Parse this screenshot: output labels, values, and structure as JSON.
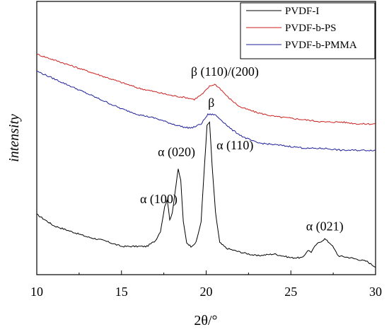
{
  "chart_data": {
    "type": "line",
    "xlabel": "2θ/°",
    "ylabel": "intensity",
    "xlim": [
      10,
      30
    ],
    "xticks": [
      "10",
      "15",
      "20",
      "25",
      "30"
    ],
    "grid": false,
    "y_tick_labels": false,
    "legend_placement": "top-right",
    "series": [
      {
        "name": "PVDF-I",
        "color": "#000000",
        "points": [
          [
            10,
            0.29
          ],
          [
            10.5,
            0.26
          ],
          [
            11,
            0.23
          ],
          [
            12,
            0.2
          ],
          [
            13,
            0.17
          ],
          [
            14,
            0.15
          ],
          [
            15,
            0.12
          ],
          [
            16,
            0.12
          ],
          [
            16.5,
            0.12
          ],
          [
            17,
            0.15
          ],
          [
            17.3,
            0.2
          ],
          [
            17.55,
            0.33
          ],
          [
            17.7,
            0.37
          ],
          [
            17.85,
            0.26
          ],
          [
            18,
            0.3
          ],
          [
            18.15,
            0.4
          ],
          [
            18.35,
            0.53
          ],
          [
            18.5,
            0.47
          ],
          [
            18.65,
            0.25
          ],
          [
            18.85,
            0.14
          ],
          [
            19.1,
            0.12
          ],
          [
            19.4,
            0.14
          ],
          [
            19.7,
            0.25
          ],
          [
            19.9,
            0.55
          ],
          [
            20.05,
            0.76
          ],
          [
            20.2,
            0.78
          ],
          [
            20.35,
            0.55
          ],
          [
            20.55,
            0.3
          ],
          [
            20.8,
            0.14
          ],
          [
            21.2,
            0.11
          ],
          [
            22,
            0.09
          ],
          [
            23,
            0.07
          ],
          [
            24,
            0.08
          ],
          [
            25,
            0.06
          ],
          [
            25.7,
            0.06
          ],
          [
            26,
            0.1
          ],
          [
            26.2,
            0.09
          ],
          [
            26.5,
            0.13
          ],
          [
            27,
            0.16
          ],
          [
            27.4,
            0.13
          ],
          [
            27.8,
            0.07
          ],
          [
            28.5,
            0.06
          ],
          [
            29.5,
            0.04
          ],
          [
            30,
            0.01
          ]
        ]
      },
      {
        "name": "PVDF-b-PS",
        "color": "#cc1f1f",
        "points": [
          [
            10,
            1.14
          ],
          [
            11,
            1.11
          ],
          [
            12,
            1.08
          ],
          [
            13,
            1.05
          ],
          [
            14,
            1.02
          ],
          [
            15,
            0.99
          ],
          [
            16,
            0.96
          ],
          [
            17,
            0.94
          ],
          [
            18,
            0.92
          ],
          [
            18.8,
            0.91
          ],
          [
            19.3,
            0.9
          ],
          [
            19.8,
            0.93
          ],
          [
            20.2,
            0.97
          ],
          [
            20.5,
            0.98
          ],
          [
            20.8,
            0.96
          ],
          [
            21.3,
            0.91
          ],
          [
            22,
            0.86
          ],
          [
            23,
            0.83
          ],
          [
            24,
            0.81
          ],
          [
            25,
            0.8
          ],
          [
            26,
            0.79
          ],
          [
            27,
            0.78
          ],
          [
            28,
            0.78
          ],
          [
            29,
            0.77
          ],
          [
            30,
            0.77
          ]
        ]
      },
      {
        "name": "PVDF-b-PMMA",
        "color": "#1f1f99",
        "points": [
          [
            10,
            1.05
          ],
          [
            11,
            1.01
          ],
          [
            12,
            0.97
          ],
          [
            13,
            0.93
          ],
          [
            14,
            0.89
          ],
          [
            15,
            0.85
          ],
          [
            16,
            0.82
          ],
          [
            17,
            0.8
          ],
          [
            18,
            0.77
          ],
          [
            18.8,
            0.75
          ],
          [
            19.2,
            0.75
          ],
          [
            19.7,
            0.77
          ],
          [
            20.1,
            0.82
          ],
          [
            20.5,
            0.82
          ],
          [
            20.9,
            0.79
          ],
          [
            21.5,
            0.74
          ],
          [
            22.2,
            0.7
          ],
          [
            23,
            0.67
          ],
          [
            24,
            0.66
          ],
          [
            25,
            0.65
          ],
          [
            26,
            0.64
          ],
          [
            27,
            0.64
          ],
          [
            28,
            0.63
          ],
          [
            29,
            0.63
          ],
          [
            30,
            0.63
          ]
        ]
      }
    ],
    "annotations": [
      {
        "text": "β (110)/(200)",
        "x": 21.1,
        "y": 1.025
      },
      {
        "text": "β",
        "x": 20.3,
        "y": 0.86
      },
      {
        "text": "α (020)",
        "x": 18.25,
        "y": 0.6
      },
      {
        "text": "α (110)",
        "x": 21.7,
        "y": 0.635
      },
      {
        "text": "α (100)",
        "x": 17.2,
        "y": 0.35
      },
      {
        "text": "α (021)",
        "x": 27.0,
        "y": 0.205
      }
    ]
  }
}
